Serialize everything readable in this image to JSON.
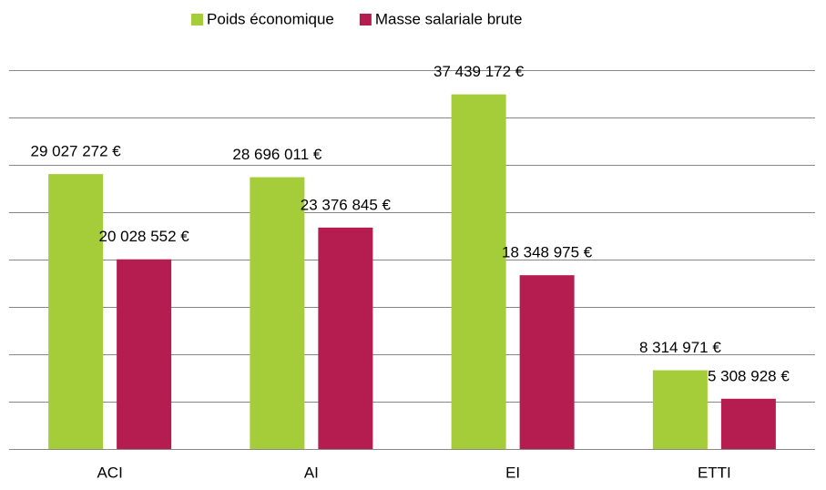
{
  "chart_data": {
    "type": "bar",
    "categories": [
      "ACI",
      "AI",
      "EI",
      "ETTI"
    ],
    "series": [
      {
        "name": "Poids économique",
        "color": "#a5cd3a",
        "values": [
          29027272,
          28696011,
          37439172,
          8314971
        ],
        "value_labels": [
          "29 027 272 €",
          "28 696 011 €",
          "37 439 172 €",
          "8 314 971 €"
        ]
      },
      {
        "name": "Masse salariale brute",
        "color": "#b51d51",
        "values": [
          20028552,
          23376845,
          18348975,
          5308928
        ],
        "value_labels": [
          "20 028 552 €",
          "23 376 845 €",
          "18 348 975 €",
          "5 308 928 €"
        ]
      }
    ],
    "ylim": [
      0,
      40000000
    ],
    "yticks": [
      0,
      5000000,
      10000000,
      15000000,
      20000000,
      25000000,
      30000000,
      35000000,
      40000000
    ],
    "grid": true,
    "legend": "top"
  }
}
